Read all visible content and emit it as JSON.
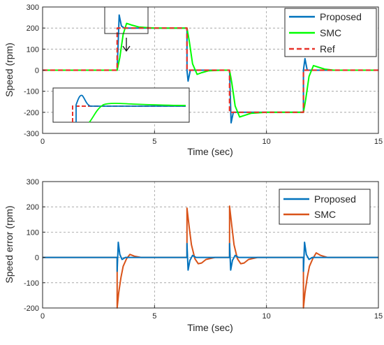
{
  "colors": {
    "proposed": "#0072BD",
    "smc_top": "#00FF00",
    "ref": "#E8332A",
    "smc_bottom": "#D95319",
    "grid": "#9a9a9a",
    "axis": "#262626"
  },
  "chart_data": [
    {
      "type": "line",
      "xlabel": "Time (sec)",
      "ylabel": "Speed (rpm)",
      "xlim": [
        0,
        15
      ],
      "ylim": [
        -300,
        300
      ],
      "xticks": [
        0,
        5,
        10,
        15
      ],
      "yticks": [
        -300,
        -200,
        -100,
        0,
        100,
        200,
        300
      ],
      "grid": true,
      "legend_position": "top-right",
      "legend": [
        "Proposed",
        "SMC",
        "Ref"
      ],
      "inset": "zoom of the 3.3–4.5 s step, rendered at lower-left",
      "series": [
        {
          "name": "Ref",
          "style": "dashed",
          "x": [
            0,
            3.33,
            3.33,
            6.45,
            6.45,
            8.35,
            8.35,
            11.65,
            11.65,
            15
          ],
          "y": [
            0,
            0,
            200,
            200,
            0,
            0,
            -200,
            -200,
            0,
            0
          ]
        },
        {
          "name": "Proposed",
          "x": [
            0,
            3.33,
            3.33,
            3.42,
            3.52,
            3.65,
            4.0,
            6.45,
            6.45,
            6.5,
            6.6,
            6.75,
            7.2,
            8.35,
            8.35,
            8.42,
            8.52,
            8.65,
            9.0,
            11.65,
            11.65,
            11.72,
            11.82,
            11.95,
            12.3,
            15
          ],
          "y": [
            0,
            0,
            0,
            262,
            210,
            200,
            200,
            200,
            0,
            -52,
            0,
            0,
            0,
            0,
            0,
            -250,
            -200,
            -200,
            -200,
            -200,
            0,
            55,
            0,
            0,
            0,
            0
          ]
        },
        {
          "name": "SMC",
          "x": [
            0,
            3.33,
            3.45,
            3.6,
            3.75,
            3.95,
            4.3,
            5.0,
            6.45,
            6.55,
            6.7,
            6.9,
            7.1,
            7.4,
            8.0,
            8.35,
            8.45,
            8.6,
            8.8,
            9.0,
            9.3,
            10.0,
            11.65,
            11.75,
            11.9,
            12.1,
            12.3,
            12.6,
            13.0,
            15
          ],
          "y": [
            0,
            0,
            60,
            170,
            222,
            215,
            205,
            200,
            200,
            140,
            30,
            -20,
            -12,
            -3,
            0,
            0,
            -60,
            -170,
            -222,
            -215,
            -205,
            -200,
            -200,
            -140,
            -30,
            22,
            15,
            5,
            0,
            0
          ]
        }
      ]
    },
    {
      "type": "line",
      "xlabel": "Time (sec)",
      "ylabel": "Speed error (rpm)",
      "xlim": [
        0,
        15
      ],
      "ylim": [
        -200,
        300
      ],
      "xticks": [
        0,
        5,
        10,
        15
      ],
      "yticks": [
        -200,
        -100,
        0,
        100,
        200,
        300
      ],
      "grid": true,
      "legend_position": "top-right",
      "legend": [
        "Proposed",
        "SMC"
      ],
      "series": [
        {
          "name": "Proposed",
          "x": [
            0,
            3.33,
            3.33,
            3.38,
            3.45,
            3.55,
            3.7,
            6.45,
            6.45,
            6.5,
            6.58,
            6.7,
            6.85,
            8.35,
            8.35,
            8.4,
            8.48,
            8.6,
            8.75,
            11.65,
            11.65,
            11.7,
            11.78,
            11.9,
            12.05,
            15
          ],
          "y": [
            0,
            0,
            -55,
            60,
            12,
            -8,
            0,
            0,
            55,
            -50,
            -12,
            8,
            0,
            0,
            55,
            -50,
            -12,
            8,
            0,
            0,
            -55,
            60,
            12,
            -8,
            0,
            0
          ]
        },
        {
          "name": "SMC",
          "x": [
            0,
            3.33,
            3.33,
            3.4,
            3.5,
            3.6,
            3.75,
            3.9,
            4.1,
            4.4,
            6.45,
            6.45,
            6.55,
            6.65,
            6.8,
            6.95,
            7.1,
            7.3,
            7.7,
            8.35,
            8.35,
            8.45,
            8.55,
            8.7,
            8.85,
            9.0,
            9.2,
            9.6,
            11.65,
            11.65,
            11.72,
            11.82,
            11.92,
            12.07,
            12.22,
            12.42,
            12.72,
            15
          ],
          "y": [
            0,
            0,
            -200,
            -140,
            -80,
            -35,
            -5,
            12,
            5,
            0,
            0,
            195,
            120,
            50,
            -5,
            -25,
            -22,
            -8,
            0,
            0,
            203,
            125,
            50,
            -5,
            -25,
            -22,
            -8,
            0,
            0,
            -200,
            -140,
            -80,
            -35,
            -5,
            18,
            8,
            0,
            0
          ]
        }
      ]
    }
  ]
}
